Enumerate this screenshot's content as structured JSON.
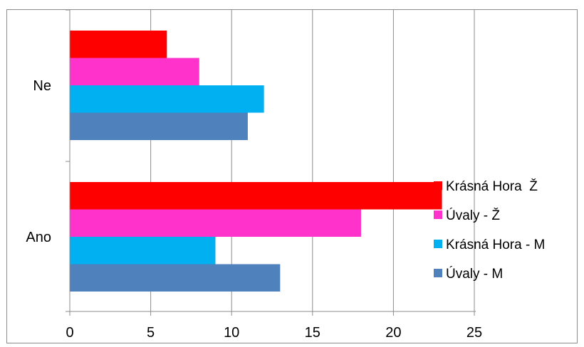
{
  "chart_data": {
    "type": "bar",
    "orientation": "horizontal",
    "categories": [
      "Ne",
      "Ano"
    ],
    "series": [
      {
        "name": "Krásná Hora  Ž",
        "color": "#ff0000",
        "values": [
          6,
          23
        ]
      },
      {
        "name": "Úvaly - Ž",
        "color": "#ff33cc",
        "values": [
          8,
          18
        ]
      },
      {
        "name": "Krásná Hora - M",
        "color": "#00b0f0",
        "values": [
          12,
          9
        ]
      },
      {
        "name": "Úvaly - M",
        "color": "#4f81bd",
        "values": [
          11,
          13
        ]
      }
    ],
    "x_ticks": [
      "0",
      "5",
      "10",
      "15",
      "20",
      "25"
    ],
    "xlim": [
      0,
      25
    ],
    "grid": "vertical",
    "legend_position": "right"
  }
}
